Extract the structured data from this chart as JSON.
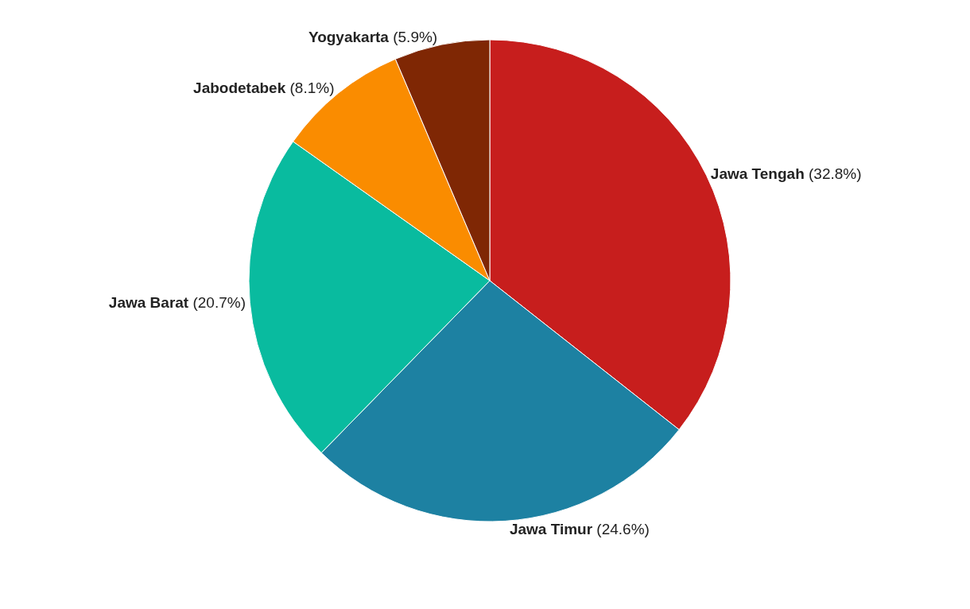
{
  "chart_data": {
    "type": "pie",
    "categories": [
      "Jawa Tengah",
      "Jawa Timur",
      "Jawa Barat",
      "Jabodetabek",
      "Yogyakarta"
    ],
    "values": [
      32.8,
      24.6,
      20.7,
      8.1,
      5.9
    ],
    "value_labels": [
      "(32.8%)",
      "(24.6%)",
      "(20.7%)",
      "(8.1%)",
      "(5.9%)"
    ],
    "colors": [
      "#c71e1d",
      "#1d81a2",
      "#09bb9f",
      "#fa8c00",
      "#7f2704"
    ]
  }
}
